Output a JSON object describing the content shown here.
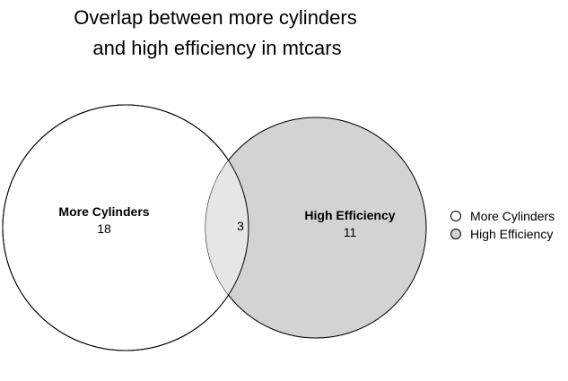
{
  "chart_data": {
    "type": "venn",
    "title_lines": [
      "Overlap between more cylinders",
      "and high efficiency in mtcars"
    ],
    "sets": [
      {
        "name": "More Cylinders",
        "only_count": "18",
        "fill": "#ffffff"
      },
      {
        "name": "High Efficiency",
        "only_count": "11",
        "fill": "#d3d3d3"
      }
    ],
    "intersection": {
      "count": "3",
      "fill": "#e6e6e6"
    },
    "legend": {
      "position": "right",
      "entries": [
        {
          "label": "More Cylinders",
          "fill": "#ffffff"
        },
        {
          "label": "High Efficiency",
          "fill": "#d3d3d3"
        }
      ]
    }
  }
}
